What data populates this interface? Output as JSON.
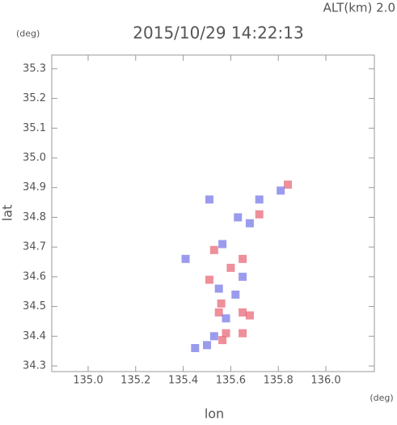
{
  "chart_data": {
    "type": "scatter",
    "title": "2015/10/29 14:22:13",
    "annotation": "ALT(km)  2.0",
    "y_unit": "(deg)",
    "x_unit": "(deg)",
    "x_label": "lon",
    "y_label": "lat",
    "xlim": [
      134.847,
      136.204
    ],
    "ylim": [
      34.281,
      35.346
    ],
    "xticks": [
      {
        "value": 135.0,
        "label": "135.0"
      },
      135.2,
      135.4,
      135.6,
      135.8,
      {
        "value": 136.0,
        "label": "136.0"
      }
    ],
    "yticks": [
      34.3,
      34.4,
      34.5,
      34.6,
      34.7,
      34.8,
      34.9,
      {
        "value": 35.0,
        "label": "35.0"
      },
      35.1,
      35.2,
      35.3
    ],
    "series": [
      {
        "color": "#e86a78",
        "x": [
          135.58,
          135.565,
          135.65,
          135.55,
          135.65,
          135.6,
          135.65,
          135.51,
          135.84,
          135.56,
          135.68,
          135.72,
          135.53
        ],
        "y": [
          34.41,
          34.387,
          34.41,
          34.48,
          34.48,
          34.63,
          34.66,
          34.59,
          34.91,
          34.51,
          34.47,
          34.81,
          34.69
        ]
      },
      {
        "color": "#7a7ae8",
        "x": [
          135.45,
          135.5,
          135.53,
          135.62,
          135.55,
          135.65,
          135.565,
          135.63,
          135.51,
          135.72,
          135.81,
          135.41,
          135.68,
          135.58
        ],
        "y": [
          34.36,
          34.37,
          34.4,
          34.54,
          34.56,
          34.6,
          34.71,
          34.8,
          34.86,
          34.86,
          34.89,
          34.66,
          34.78,
          34.46
        ]
      }
    ]
  }
}
